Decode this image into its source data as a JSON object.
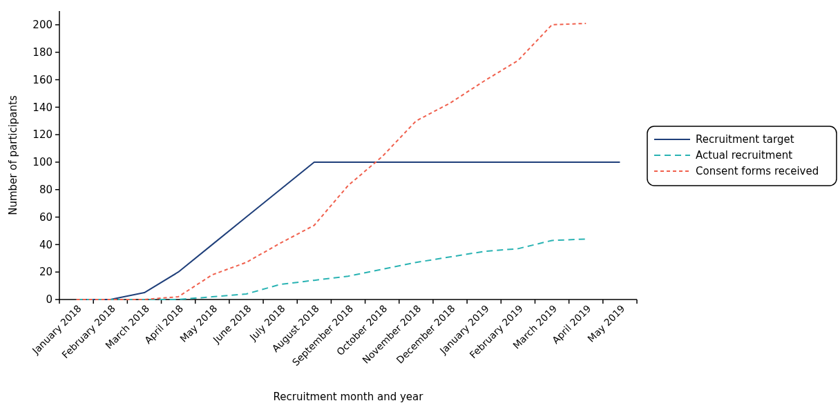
{
  "chart_data": {
    "type": "line",
    "xlabel": "Recruitment month and year",
    "ylabel": "Number of participants",
    "categories": [
      "January 2018",
      "February 2018",
      "March 2018",
      "April 2018",
      "May 2018",
      "June 2018",
      "July 2018",
      "August 2018",
      "September 2018",
      "October 2018",
      "November 2018",
      "December 2018",
      "January 2019",
      "February 2019",
      "March 2019",
      "April 2019",
      "May 2019"
    ],
    "series": [
      {
        "name": "Recruitment target",
        "color": "#1f3f7a",
        "line_style": "solid",
        "values": [
          0,
          0,
          5,
          20,
          40,
          60,
          80,
          100,
          100,
          100,
          100,
          100,
          100,
          100,
          100,
          100,
          100
        ]
      },
      {
        "name": "Actual recruitment",
        "color": "#2ab3b3",
        "line_style": "dashed",
        "values": [
          0,
          0,
          0,
          0,
          2,
          4,
          11,
          14,
          17,
          22,
          27,
          31,
          35,
          37,
          43,
          44,
          null
        ]
      },
      {
        "name": "Consent forms received",
        "color": "#f0604d",
        "line_style": "dotted",
        "values": [
          0,
          0,
          0,
          2,
          18,
          27,
          41,
          54,
          83,
          104,
          130,
          143,
          159,
          174,
          200,
          201,
          null
        ]
      }
    ],
    "ylim": [
      0,
      210
    ],
    "yticks": [
      0,
      20,
      40,
      60,
      80,
      100,
      120,
      140,
      160,
      180,
      200
    ],
    "grid": false,
    "legend": "right"
  }
}
